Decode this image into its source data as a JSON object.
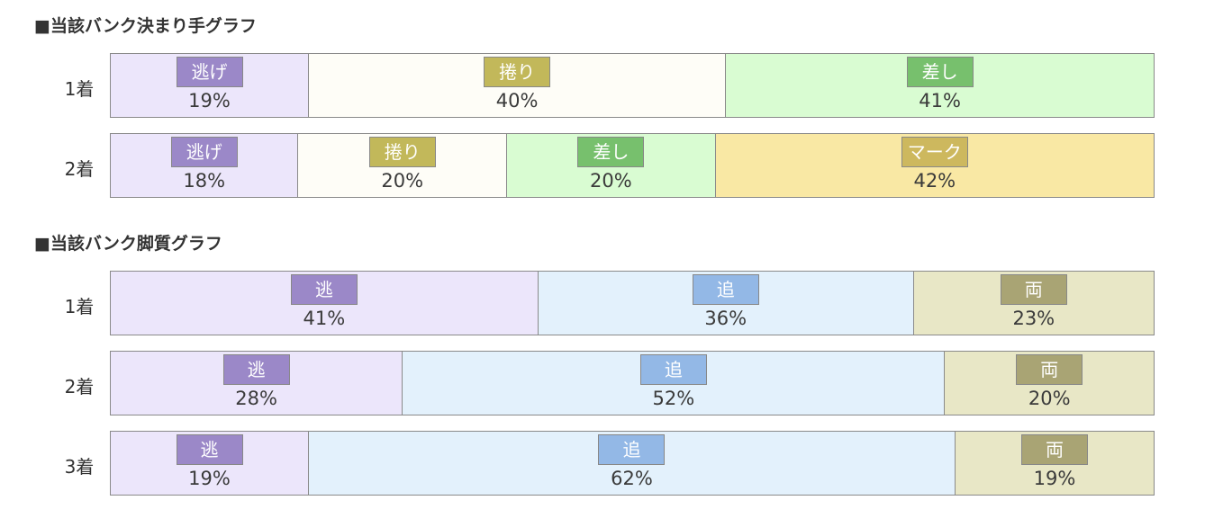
{
  "chart_data": [
    {
      "type": "bar",
      "stacked": true,
      "title": "■当該バンク決まり手グラフ",
      "categories": [
        "1着",
        "2着"
      ],
      "rows": [
        {
          "label": "1着",
          "segments": [
            {
              "name": "逃げ",
              "value": 19
            },
            {
              "name": "捲り",
              "value": 40
            },
            {
              "name": "差し",
              "value": 41
            }
          ]
        },
        {
          "label": "2着",
          "segments": [
            {
              "name": "逃げ",
              "value": 18
            },
            {
              "name": "捲り",
              "value": 20
            },
            {
              "name": "差し",
              "value": 20
            },
            {
              "name": "マーク",
              "value": 42
            }
          ]
        }
      ]
    },
    {
      "type": "bar",
      "stacked": true,
      "title": "■当該バンク脚質グラフ",
      "categories": [
        "1着",
        "2着",
        "3着"
      ],
      "rows": [
        {
          "label": "1着",
          "segments": [
            {
              "name": "逃",
              "value": 41
            },
            {
              "name": "追",
              "value": 36
            },
            {
              "name": "両",
              "value": 23
            }
          ]
        },
        {
          "label": "2着",
          "segments": [
            {
              "name": "逃",
              "value": 28
            },
            {
              "name": "追",
              "value": 52
            },
            {
              "name": "両",
              "value": 20
            }
          ]
        },
        {
          "label": "3着",
          "segments": [
            {
              "name": "逃",
              "value": 19
            },
            {
              "name": "追",
              "value": 62
            },
            {
              "name": "両",
              "value": 19
            }
          ]
        }
      ]
    }
  ],
  "colors": {
    "逃げ": {
      "bg": "#ece6fb",
      "tag": "#9b88c8"
    },
    "捲り": {
      "bg": "#fefdf7",
      "tag": "#c2b85a"
    },
    "差し": {
      "bg": "#d9fcd2",
      "tag": "#77c06d"
    },
    "マーク": {
      "bg": "#f9e8a4",
      "tag": "#cdb85e"
    },
    "逃": {
      "bg": "#ece6fb",
      "tag": "#9b88c8"
    },
    "追": {
      "bg": "#e3f1fc",
      "tag": "#93b8e6"
    },
    "両": {
      "bg": "#e8e7c6",
      "tag": "#a9a474"
    }
  }
}
